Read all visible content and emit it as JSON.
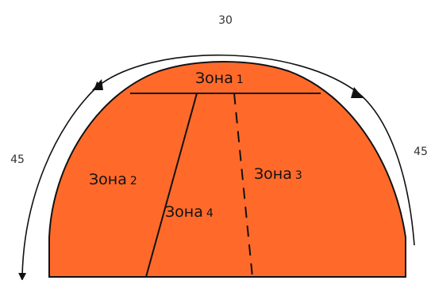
{
  "colors": {
    "zone_fill": "#FF6A2B",
    "zone_stroke": "#111111",
    "arc": "#111111",
    "label": "#111111"
  },
  "angles": {
    "top": "30",
    "left": "45",
    "right": "45"
  },
  "zones": [
    {
      "word": "Зона",
      "num": "1"
    },
    {
      "word": "Зона",
      "num": "2"
    },
    {
      "word": "Зона",
      "num": "3"
    },
    {
      "word": "Зона",
      "num": "4"
    }
  ]
}
